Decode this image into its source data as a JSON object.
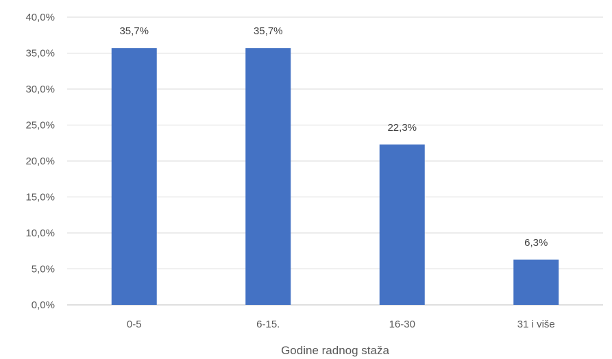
{
  "chart_data": {
    "type": "bar",
    "categories": [
      "0-5",
      "6-15.",
      "16-30",
      "31 i više"
    ],
    "values": [
      35.7,
      35.7,
      22.3,
      6.3
    ],
    "data_labels": [
      "35,7%",
      "35,7%",
      "22,3%",
      "6,3%"
    ],
    "xlabel": "Godine radnog staža",
    "ylabel": "",
    "ylim": [
      0,
      40
    ],
    "yticks": [
      0,
      5,
      10,
      15,
      20,
      25,
      30,
      35,
      40
    ],
    "ytick_labels": [
      "0,0%",
      "5,0%",
      "10,0%",
      "15,0%",
      "20,0%",
      "25,0%",
      "30,0%",
      "35,0%",
      "40,0%"
    ],
    "grid": true,
    "legend": "none",
    "bar_color": "#4472c4"
  }
}
